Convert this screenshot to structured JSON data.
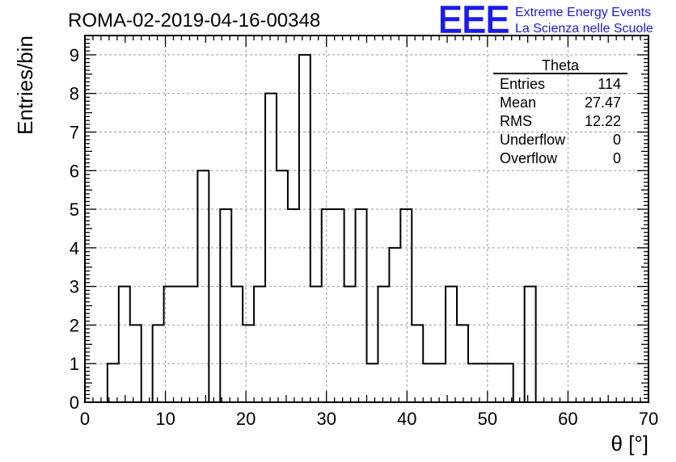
{
  "chart_data": {
    "type": "bar",
    "title": "ROMA-02-2019-04-16-00348",
    "xlabel": "θ [°]",
    "ylabel": "Entries/bin",
    "xlim": [
      0,
      70
    ],
    "ylim": [
      0,
      9.5
    ],
    "x_ticks": [
      0,
      10,
      20,
      30,
      40,
      50,
      60,
      70
    ],
    "y_ticks": [
      0,
      1,
      2,
      3,
      4,
      5,
      6,
      7,
      8,
      9
    ],
    "grid": true,
    "bin_edges": [
      0,
      1.4,
      2.8,
      4.2,
      5.6,
      7,
      8.4,
      9.8,
      11.2,
      12.6,
      14,
      15.4,
      16.8,
      18.2,
      19.6,
      21,
      22.4,
      23.8,
      25.2,
      26.6,
      28,
      29.4,
      30.8,
      32.2,
      33.6,
      35,
      36.4,
      37.8,
      39.2,
      40.6,
      42,
      43.4,
      44.8,
      46.2,
      47.6,
      49,
      50.4,
      51.8,
      53.2,
      54.6,
      56,
      57.4,
      58.8,
      60.2,
      61.6,
      63,
      64.4,
      65.8,
      67.2,
      68.6,
      70
    ],
    "values": [
      0,
      0,
      1,
      3,
      2,
      0,
      2,
      3,
      3,
      3,
      6,
      0,
      5,
      3,
      2,
      3,
      8,
      6,
      5,
      9,
      3,
      5,
      5,
      3,
      5,
      1,
      3,
      4,
      5,
      2,
      1,
      1,
      3,
      2,
      1,
      1,
      1,
      1,
      0,
      3,
      0,
      0,
      0,
      0,
      0,
      0,
      0,
      0,
      0,
      0
    ],
    "stats": {
      "title": "Theta",
      "rows": [
        {
          "label": "Entries",
          "value": "114"
        },
        {
          "label": "Mean",
          "value": "27.47"
        },
        {
          "label": "RMS",
          "value": "12.22"
        },
        {
          "label": "Underflow",
          "value": "0"
        },
        {
          "label": "Overflow",
          "value": "0"
        }
      ]
    },
    "logo": {
      "text": "EEE",
      "line1": "Extreme Energy Events",
      "line2": "La Scienza nelle Scuole",
      "color": "#1a1aee"
    }
  }
}
